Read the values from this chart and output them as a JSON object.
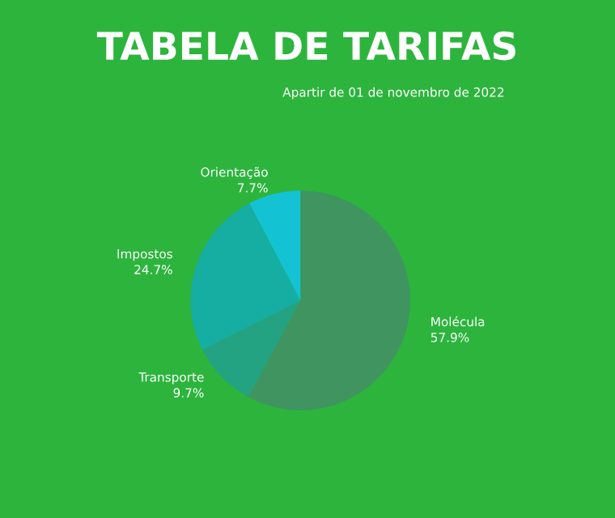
{
  "chart_data": {
    "type": "pie",
    "title": "TABELA DE TARIFAS",
    "subtitle": "Apartir de 01 de novembro de 2022",
    "categories": [
      "Molécula",
      "Transporte",
      "Impostos",
      "Orientação"
    ],
    "values": [
      57.9,
      9.7,
      24.7,
      7.7
    ],
    "value_labels": [
      "57.9%",
      "9.7%",
      "24.7%",
      "7.7%"
    ],
    "colors": [
      "#3f9460",
      "#24a382",
      "#16ada3",
      "#14c3d3"
    ]
  }
}
